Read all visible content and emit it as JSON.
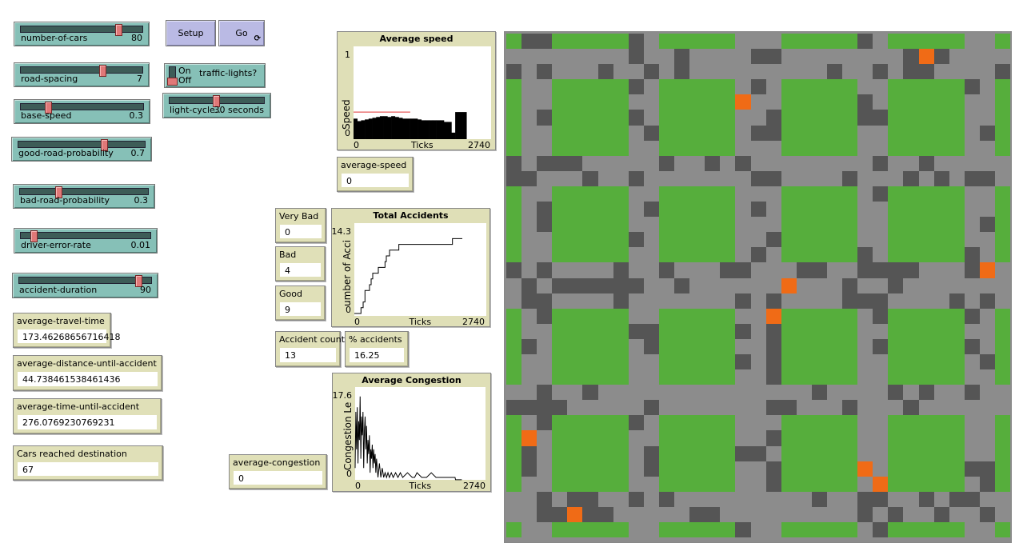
{
  "buttons": {
    "setup": "Setup",
    "go": "Go"
  },
  "sliders": [
    {
      "id": "number-of-cars",
      "label": "number-of-cars",
      "value": "80",
      "fraction": 0.8
    },
    {
      "id": "road-spacing",
      "label": "road-spacing",
      "value": "7",
      "fraction": 0.67
    },
    {
      "id": "base-speed",
      "label": "base-speed",
      "value": "0.3",
      "fraction": 0.22
    },
    {
      "id": "good-road-probability",
      "label": "good-road-probability",
      "value": "0.7",
      "fraction": 0.68
    },
    {
      "id": "bad-road-probability",
      "label": "bad-road-probability",
      "value": "0.3",
      "fraction": 0.3
    },
    {
      "id": "driver-error-rate",
      "label": "driver-error-rate",
      "value": "0.01",
      "fraction": 0.1
    },
    {
      "id": "accident-duration",
      "label": "accident-duration",
      "value": "90",
      "fraction": 0.9
    },
    {
      "id": "light-cycle",
      "label": "light-cycle...",
      "value": "30 seconds",
      "fraction": 0.49
    }
  ],
  "switch": {
    "label": "traffic-lights?",
    "on": "On",
    "off": "Off",
    "state": "off"
  },
  "monitors": {
    "average_travel_time": {
      "label": "average-travel-time",
      "value": "173.46268656716418"
    },
    "average_distance_until_accident": {
      "label": "average-distance-until-accident",
      "value": "44.738461538461436"
    },
    "average_time_until_accident": {
      "label": "average-time-until-accident",
      "value": "276.0769230769231"
    },
    "cars_reached": {
      "label": "Cars reached destination",
      "value": "67"
    },
    "average_speed": {
      "label": "average-speed",
      "value": "0"
    },
    "very_bad": {
      "label": "Very Bad",
      "value": "0"
    },
    "bad": {
      "label": "Bad",
      "value": "4"
    },
    "good": {
      "label": "Good",
      "value": "9"
    },
    "accident_count": {
      "label": "Accident count",
      "value": "13"
    },
    "pct_accidents": {
      "label": "% accidents",
      "value": "16.25"
    },
    "average_congestion": {
      "label": "average-congestion",
      "value": "0"
    }
  },
  "colors": {
    "green": "#56ae3c",
    "road": "#8c8c8c",
    "bad_road": "#555555",
    "car": "#f06b16"
  },
  "chart_data": [
    {
      "type": "bar",
      "title": "Average speed",
      "xlabel": "Ticks",
      "ylabel": "Speed",
      "xlim": [
        0,
        2740
      ],
      "ylim": [
        0,
        1
      ],
      "xtick_labels": [
        "0",
        "2740"
      ],
      "ytick_labels": [
        "1",
        "0"
      ],
      "bin_width": 75,
      "x": [
        0,
        75,
        150,
        225,
        300,
        375,
        450,
        525,
        600,
        675,
        750,
        825,
        900,
        975,
        1050,
        1125,
        1200,
        1275,
        1350,
        1425,
        1500,
        1575,
        1650,
        1725,
        1800,
        1875,
        1950,
        2025,
        2100,
        2175
      ],
      "values": [
        0.22,
        0.19,
        0.2,
        0.21,
        0.22,
        0.23,
        0.24,
        0.25,
        0.25,
        0.24,
        0.25,
        0.24,
        0.23,
        0.22,
        0.22,
        0.22,
        0.22,
        0.21,
        0.2,
        0.2,
        0.2,
        0.2,
        0.2,
        0.2,
        0.18,
        0.18,
        0.05,
        0.3,
        0.3,
        0.3
      ],
      "reference_line": {
        "color": "#e03030",
        "y": 0.3,
        "x": [
          0,
          1130
        ]
      }
    },
    {
      "type": "line",
      "title": "Total Accidents",
      "xlabel": "Ticks",
      "ylabel": "Number of Accidents",
      "xlim": [
        0,
        2740
      ],
      "ylim": [
        0,
        14.3
      ],
      "xtick_labels": [
        "0",
        "2740"
      ],
      "ytick_labels": [
        "14.3",
        "0"
      ],
      "step": true,
      "x": [
        0,
        138,
        183,
        221,
        315,
        349,
        382,
        498,
        637,
        664,
        731,
        924,
        2037,
        2242
      ],
      "values": [
        0,
        1,
        2,
        4,
        5,
        6,
        7,
        8,
        9,
        10,
        11,
        12,
        13,
        13
      ]
    },
    {
      "type": "line",
      "title": "Average Congestion",
      "xlabel": "Ticks",
      "ylabel": "Congestion Level",
      "xlim": [
        0,
        2740
      ],
      "ylim": [
        0,
        17.6
      ],
      "xtick_labels": [
        "0",
        "2740"
      ],
      "ytick_labels": [
        "17.6",
        "0"
      ],
      "x": [
        0,
        15,
        30,
        45,
        60,
        75,
        90,
        105,
        120,
        135,
        150,
        165,
        180,
        195,
        210,
        225,
        240,
        255,
        270,
        285,
        300,
        315,
        330,
        345,
        360,
        375,
        390,
        405,
        420,
        435,
        450,
        480,
        510,
        540,
        570,
        600,
        630,
        660,
        690,
        720,
        760,
        800,
        850,
        900,
        950,
        1000,
        1100,
        1200,
        1250,
        1300,
        1400,
        1500,
        1600,
        1700,
        2100,
        2110,
        2242
      ],
      "values": [
        2,
        14,
        6,
        15,
        3,
        12,
        8,
        17.3,
        4,
        13,
        9,
        14,
        2,
        10,
        13,
        6,
        11,
        3,
        8,
        5,
        9,
        1,
        6,
        4,
        7,
        2,
        6,
        3,
        5,
        1,
        4,
        0,
        3,
        0,
        2,
        0,
        1,
        0,
        1,
        0,
        1,
        0,
        1,
        0,
        1,
        0,
        1,
        0,
        0,
        1,
        0,
        0,
        1,
        0,
        0,
        -0.5,
        -0.5
      ]
    }
  ],
  "plots": {
    "speed": {
      "title": "Average speed",
      "xlabel": "Ticks",
      "ylabel": "Speed",
      "xmin": "0",
      "xmax": "2740",
      "ymax": "1",
      "ymin": "0"
    },
    "accidents": {
      "title": "Total Accidents",
      "xlabel": "Ticks",
      "ylabel": "umber of Acci",
      "xmin": "0",
      "xmax": "2740",
      "ymax": "14.3",
      "ymin": "0"
    },
    "congestion": {
      "title": "Average Congestion",
      "xlabel": "Ticks",
      "ylabel": "Congestion Le",
      "xmin": "0",
      "xmax": "2740",
      "ymax": "17.6",
      "ymin": "0"
    }
  }
}
